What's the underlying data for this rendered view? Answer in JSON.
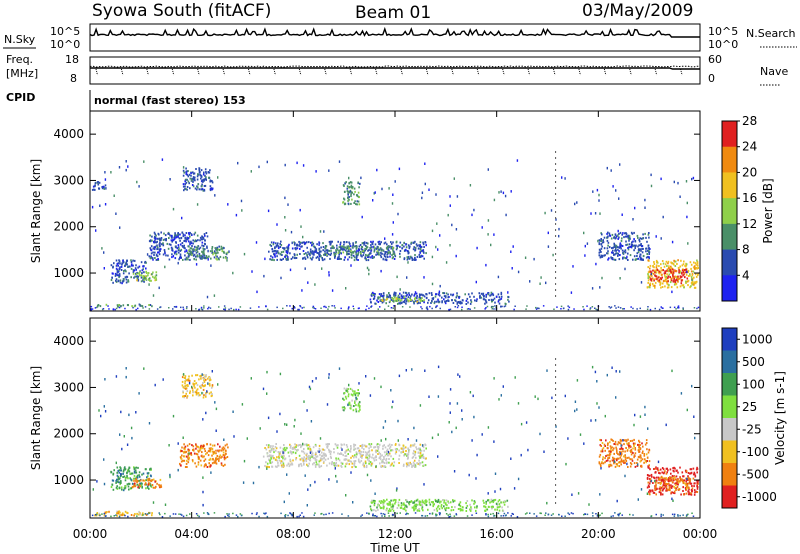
{
  "header": {
    "station": "Syowa South (fitACF)",
    "beam": "Beam 01",
    "date": "03/May/2009"
  },
  "sky_panel": {
    "left_label": "N.Sky",
    "right_label": "N.Search",
    "left_ticks": [
      "10^5",
      "10^0"
    ],
    "right_ticks": [
      "10^5",
      "10^0"
    ]
  },
  "freq_panel": {
    "left_label_1": "Freq.",
    "left_label_2": "[MHz]",
    "right_label": "Nave",
    "left_ticks": [
      "18",
      "8"
    ],
    "right_ticks": [
      "60",
      "0"
    ]
  },
  "cpid": {
    "label": "CPID",
    "value": "normal (fast stereo) 153"
  },
  "chart_data": [
    {
      "type": "heatmap",
      "name": "power",
      "ylabel": "Slant Range [km]",
      "ylim": [
        180,
        4500
      ],
      "yticks": [
        1000,
        2000,
        3000,
        4000
      ],
      "colorbar_label": "Power [dB]",
      "colorbar_ticks": [
        "4",
        "8",
        "12",
        "16",
        "20",
        "24",
        "28"
      ],
      "colors": [
        "#1e22f0",
        "#2a4bb0",
        "#4a8f68",
        "#8fcf4a",
        "#f0c020",
        "#f08a10",
        "#e02020"
      ],
      "scatter_regions": [
        {
          "x": [
            0.05,
            0.6
          ],
          "y": [
            2800,
            3000
          ],
          "level": 1
        },
        {
          "x": [
            0.1,
            2.5
          ],
          "y": [
            300,
            350
          ],
          "level": 2
        },
        {
          "x": [
            0.8,
            2.2
          ],
          "y": [
            800,
            1300
          ],
          "level": 1
        },
        {
          "x": [
            1.6,
            2.6
          ],
          "y": [
            850,
            1050
          ],
          "level": 3
        },
        {
          "x": [
            2.3,
            4.6
          ],
          "y": [
            1300,
            1900
          ],
          "level": 1
        },
        {
          "x": [
            3.8,
            5.4
          ],
          "y": [
            1300,
            1600
          ],
          "level": 2
        },
        {
          "x": [
            3.6,
            4.8
          ],
          "y": [
            2800,
            3300
          ],
          "level": 1
        },
        {
          "x": [
            7.0,
            13.2
          ],
          "y": [
            1300,
            1700
          ],
          "level": 1
        },
        {
          "x": [
            9.2,
            12.0
          ],
          "y": [
            1400,
            1600
          ],
          "level": 2
        },
        {
          "x": [
            9.9,
            10.6
          ],
          "y": [
            2500,
            3000
          ],
          "level": 2
        },
        {
          "x": [
            11.0,
            16.5
          ],
          "y": [
            350,
            600
          ],
          "level": 1
        },
        {
          "x": [
            11.2,
            13.2
          ],
          "y": [
            400,
            500
          ],
          "level": 3
        },
        {
          "x": [
            20.0,
            22.0
          ],
          "y": [
            1300,
            1900
          ],
          "level": 1
        },
        {
          "x": [
            21.9,
            23.9
          ],
          "y": [
            700,
            1300
          ],
          "level": 4
        },
        {
          "x": [
            22.0,
            23.5
          ],
          "y": [
            800,
            1100
          ],
          "level": 6
        }
      ]
    },
    {
      "type": "heatmap",
      "name": "velocity",
      "ylabel": "Slant Range [km]",
      "ylim": [
        180,
        4500
      ],
      "yticks": [
        1000,
        2000,
        3000,
        4000
      ],
      "xlabel": "Time UT",
      "xticks": [
        "00:00",
        "04:00",
        "08:00",
        "12:00",
        "16:00",
        "20:00",
        "00:00"
      ],
      "xlim": [
        0,
        24
      ],
      "colorbar_label": "Velocity [m s-1]",
      "colorbar_ticks": [
        "1000",
        "500",
        "100",
        "25",
        "-25",
        "-100",
        "-500",
        "-1000"
      ],
      "colors": [
        "#1f3fbf",
        "#2a6fa0",
        "#3f9f50",
        "#7fdf3f",
        "#c8c8c8",
        "#f0c020",
        "#f08010",
        "#e02020"
      ],
      "scatter_regions": [
        {
          "x": [
            0.05,
            2.5
          ],
          "y": [
            250,
            350
          ],
          "level": 5
        },
        {
          "x": [
            0.8,
            2.4
          ],
          "y": [
            800,
            1300
          ],
          "level": 2
        },
        {
          "x": [
            1.6,
            2.8
          ],
          "y": [
            850,
            1050
          ],
          "level": 6
        },
        {
          "x": [
            3.5,
            5.4
          ],
          "y": [
            1300,
            1800
          ],
          "level": 6
        },
        {
          "x": [
            3.6,
            4.8
          ],
          "y": [
            2800,
            3300
          ],
          "level": 5
        },
        {
          "x": [
            6.8,
            13.2
          ],
          "y": [
            1300,
            1800
          ],
          "level": 4
        },
        {
          "x": [
            9.9,
            10.6
          ],
          "y": [
            2500,
            3000
          ],
          "level": 3
        },
        {
          "x": [
            11.0,
            16.5
          ],
          "y": [
            350,
            600
          ],
          "level": 3
        },
        {
          "x": [
            20.0,
            22.0
          ],
          "y": [
            1300,
            1900
          ],
          "level": 6
        },
        {
          "x": [
            21.9,
            23.9
          ],
          "y": [
            700,
            1300
          ],
          "level": 7
        },
        {
          "x": [
            22.2,
            23.6
          ],
          "y": [
            800,
            1100
          ],
          "level": 6
        }
      ]
    }
  ]
}
